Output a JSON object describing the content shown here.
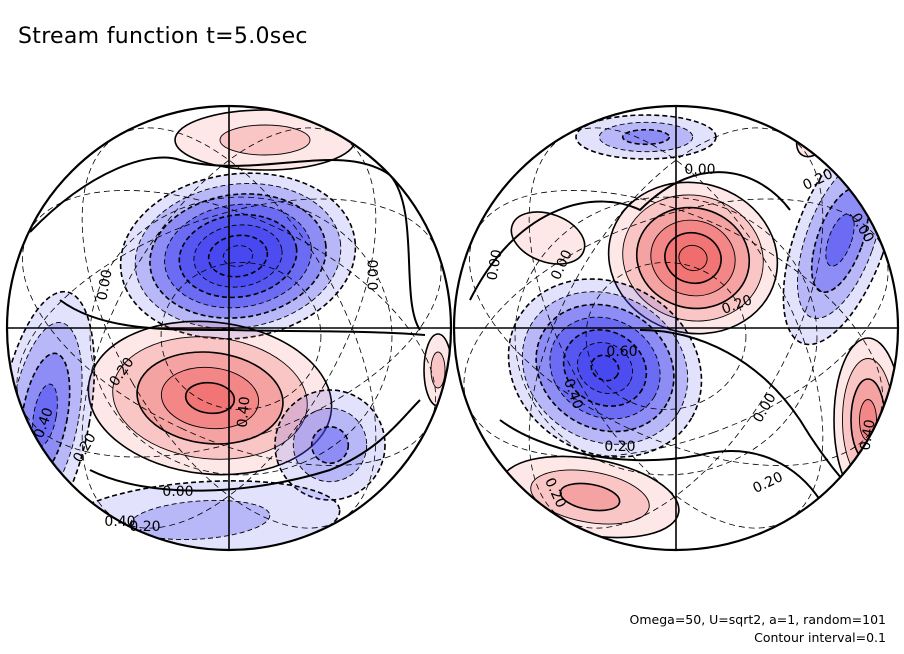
{
  "title": "Stream function t=5.0sec",
  "notes": [
    "Omega=50, U=sqrt2, a=1, random=101",
    "Contour interval=0.1"
  ],
  "colors": {
    "positive": "#f06a6a",
    "negative": "#4848f0",
    "line": "#000000",
    "background": "#ffffff"
  },
  "chart_data": {
    "type": "heatmap",
    "projection": "orthographic, two hemispheres",
    "contour_interval": 0.1,
    "color_scale": "blue negative, red positive",
    "hemispheres": [
      {
        "name": "left",
        "contour_labels": [
          "0.00",
          "0.00",
          "0.20",
          "0.40",
          "0.40",
          "0.20",
          "0.00",
          "0.40",
          "0.20"
        ],
        "extrema": [
          {
            "sign": "negative",
            "value": -0.8
          },
          {
            "sign": "positive",
            "value": 0.5
          },
          {
            "sign": "positive",
            "value": 0.2
          },
          {
            "sign": "negative",
            "value": -0.4
          },
          {
            "sign": "positive",
            "value": 0.2
          },
          {
            "sign": "negative",
            "value": -0.3
          },
          {
            "sign": "negative",
            "value": -0.2
          }
        ]
      },
      {
        "name": "right",
        "contour_labels": [
          "0.00",
          "0.20",
          "0.00",
          "0.00",
          "0.00",
          "0.20",
          "0.60",
          "0.40",
          "0.20",
          "0.00",
          "0.40",
          "0.20",
          "0.20"
        ],
        "extrema": [
          {
            "sign": "positive",
            "value": 0.6
          },
          {
            "sign": "negative",
            "value": -0.7
          },
          {
            "sign": "negative",
            "value": -0.3
          },
          {
            "sign": "negative",
            "value": -0.4
          },
          {
            "sign": "positive",
            "value": 0.3
          },
          {
            "sign": "positive",
            "value": 0.3
          },
          {
            "sign": "positive",
            "value": 0.4
          },
          {
            "sign": "positive",
            "value": 0.1
          }
        ]
      }
    ]
  }
}
